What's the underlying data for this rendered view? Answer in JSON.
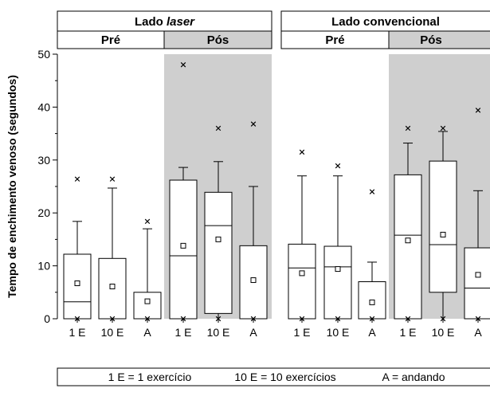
{
  "chart_data": {
    "type": "box",
    "ylabel": "Tempo de enchimento venoso (segundos)",
    "ylim": [
      0,
      50
    ],
    "yticks": [
      "0",
      "10",
      "20",
      "30",
      "40",
      "50"
    ],
    "groups": [
      {
        "title_main": "Lado ",
        "title_em": "laser",
        "periods": [
          {
            "label": "Pré",
            "shaded": false,
            "boxes": [
              {
                "label": "1 E",
                "min": 0,
                "q1": 0,
                "median": 3.2,
                "q3": 12.2,
                "max": 18.4,
                "mean": 6.7,
                "outliers": [
                  26.4,
                  0
                ]
              },
              {
                "label": "10 E",
                "min": 0,
                "q1": 0,
                "median": 0,
                "q3": 11.4,
                "max": 24.7,
                "mean": 6.1,
                "outliers": [
                  26.4,
                  0
                ]
              },
              {
                "label": "A",
                "min": 0,
                "q1": 0,
                "median": 0,
                "q3": 5.0,
                "max": 17.0,
                "mean": 3.3,
                "outliers": [
                  18.4,
                  0
                ]
              }
            ]
          },
          {
            "label": "Pós",
            "shaded": true,
            "boxes": [
              {
                "label": "1 E",
                "min": 0,
                "q1": 0,
                "median": 11.9,
                "q3": 26.2,
                "max": 28.6,
                "mean": 13.8,
                "outliers": [
                  48.0,
                  0
                ]
              },
              {
                "label": "10 E",
                "min": 0,
                "q1": 1.0,
                "median": 17.6,
                "q3": 23.9,
                "max": 29.7,
                "mean": 15.0,
                "outliers": [
                  36.0,
                  0
                ]
              },
              {
                "label": "A",
                "min": 0,
                "q1": 0,
                "median": 0,
                "q3": 13.8,
                "max": 25.0,
                "mean": 7.3,
                "outliers": [
                  36.8,
                  0
                ]
              }
            ]
          }
        ]
      },
      {
        "title_main": "Lado convencional",
        "title_em": "",
        "periods": [
          {
            "label": "Pré",
            "shaded": false,
            "boxes": [
              {
                "label": "1 E",
                "min": 0,
                "q1": 0,
                "median": 9.6,
                "q3": 14.1,
                "max": 27.0,
                "mean": 8.6,
                "outliers": [
                  31.5,
                  0
                ]
              },
              {
                "label": "10 E",
                "min": 0,
                "q1": 0,
                "median": 9.8,
                "q3": 13.7,
                "max": 27.0,
                "mean": 9.4,
                "outliers": [
                  28.9,
                  0
                ]
              },
              {
                "label": "A",
                "min": 0,
                "q1": 0,
                "median": 0,
                "q3": 7.0,
                "max": 10.7,
                "mean": 3.1,
                "outliers": [
                  24.0,
                  0
                ]
              }
            ]
          },
          {
            "label": "Pós",
            "shaded": true,
            "boxes": [
              {
                "label": "1 E",
                "min": 0,
                "q1": 0,
                "median": 15.8,
                "q3": 27.2,
                "max": 33.2,
                "mean": 14.8,
                "outliers": [
                  36.0,
                  0
                ]
              },
              {
                "label": "10 E",
                "min": 0,
                "q1": 5.0,
                "median": 14.0,
                "q3": 29.8,
                "max": 35.4,
                "mean": 15.9,
                "outliers": [
                  36.0,
                  0
                ]
              },
              {
                "label": "A",
                "min": 0,
                "q1": 0,
                "median": 5.8,
                "q3": 13.4,
                "max": 24.2,
                "mean": 8.3,
                "outliers": [
                  39.4,
                  0
                ]
              }
            ]
          }
        ]
      }
    ],
    "legend": {
      "items": [
        "1 E = 1 exercício",
        "10 E = 10 exercícios",
        "A = andando"
      ]
    }
  }
}
